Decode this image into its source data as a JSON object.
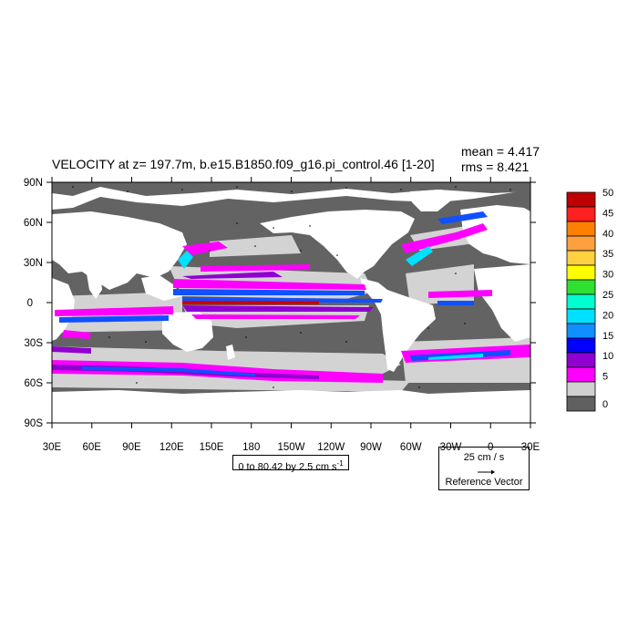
{
  "title": "VELOCITY at z= 197.7m, b.e15.B1850.f09_g16.pi_control.46 [1-20]",
  "stats": {
    "mean": "mean = 4.417",
    "rms": "rms = 8.421"
  },
  "lat_labels": [
    "90N",
    "60N",
    "30N",
    "0",
    "30S",
    "60S",
    "90S"
  ],
  "lon_labels": [
    "30E",
    "60E",
    "90E",
    "120E",
    "150E",
    "180",
    "150W",
    "120W",
    "90W",
    "60W",
    "30W",
    "0",
    "30E"
  ],
  "colorbar": {
    "levels": [
      "50",
      "45",
      "40",
      "35",
      "30",
      "25",
      "20",
      "15",
      "10",
      "5",
      "0"
    ],
    "colors": [
      "#c00000",
      "#ff2020",
      "#ff8000",
      "#ffa040",
      "#ffd040",
      "#ffff00",
      "#30e030",
      "#00ffd0",
      "#00e0ff",
      "#1090ff",
      "#0000ff",
      "#9000d0",
      "#ff00ff",
      "#d0d0d0",
      "#606060"
    ]
  },
  "range_label": {
    "text": "0 to 80.42 by 2.5 cm s",
    "exp": "-1"
  },
  "ref_vector": {
    "magnitude": "25 cm / s",
    "caption": "Reference Vector"
  },
  "palette": {
    "ocean_dark": "#636363",
    "ocean_light": "#d3d3d3",
    "land": "#ffffff",
    "magenta": "#ff00ff",
    "purple": "#9000d0",
    "blue": "#1050ff",
    "cyan": "#00e0ff",
    "red": "#d00000"
  }
}
